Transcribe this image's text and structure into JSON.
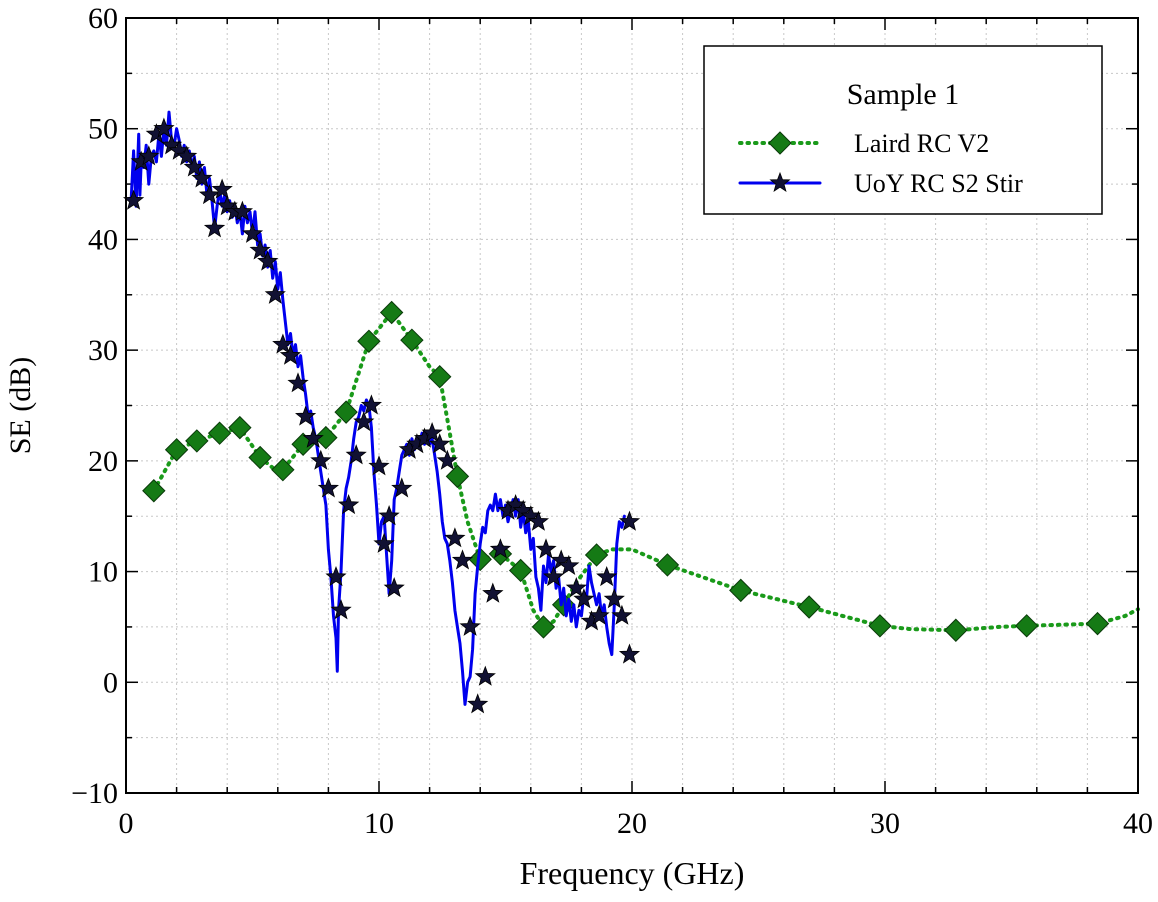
{
  "chart_data": {
    "type": "line",
    "title": "",
    "xlabel": "Frequency (GHz)",
    "ylabel": "SE (dB)",
    "xlim": [
      0,
      40
    ],
    "ylim": [
      -10,
      60
    ],
    "x_ticks": [
      0,
      10,
      20,
      30,
      40
    ],
    "y_ticks": [
      -10,
      0,
      10,
      20,
      30,
      40,
      50,
      60
    ],
    "x_tick_labels": [
      "0",
      "10",
      "20",
      "30",
      "40"
    ],
    "y_tick_labels": [
      "−10",
      "0",
      "10",
      "20",
      "30",
      "40",
      "50",
      "60"
    ],
    "grid": true,
    "legend": {
      "title": "Sample 1",
      "position": "top-right"
    },
    "series": [
      {
        "name": "Laird RC V2",
        "color": "#1a9a1a",
        "marker_color": "#157a15",
        "line_style": "dotted",
        "marker": "diamond",
        "line_x": [
          1.1,
          2.0,
          2.8,
          3.7,
          4.5,
          5.3,
          6.0,
          6.2,
          7.0,
          7.9,
          8.7,
          9.6,
          10.5,
          11.3,
          12.0,
          12.4,
          12.8,
          13.1,
          13.5,
          14.0,
          14.8,
          15.6,
          16.1,
          16.5,
          16.9,
          17.3,
          17.8,
          18.6,
          19.2,
          20.0,
          21.4,
          24.3,
          27.0,
          29.8,
          31.0,
          32.8,
          34.5,
          35.6,
          37.0,
          38.4,
          39.5,
          40.0
        ],
        "line_y": [
          17.3,
          21.0,
          21.8,
          22.5,
          23.0,
          20.3,
          19.0,
          19.2,
          21.5,
          22.1,
          24.4,
          30.8,
          33.4,
          30.9,
          28.5,
          27.6,
          22.5,
          18.6,
          14.5,
          11.1,
          11.6,
          10.1,
          6.5,
          5.0,
          5.5,
          7.0,
          9.0,
          11.5,
          12.0,
          12.0,
          10.6,
          8.3,
          6.8,
          5.1,
          4.8,
          4.7,
          5.0,
          5.1,
          5.2,
          5.3,
          6.0,
          6.6
        ],
        "marker_x": [
          1.1,
          2.0,
          2.8,
          3.7,
          4.5,
          5.3,
          6.2,
          7.0,
          7.9,
          8.7,
          9.6,
          10.5,
          11.3,
          12.4,
          13.1,
          14.0,
          14.8,
          15.6,
          16.5,
          17.3,
          18.6,
          21.4,
          24.3,
          27.0,
          29.8,
          32.8,
          35.6,
          38.4
        ],
        "marker_y": [
          17.3,
          21.0,
          21.8,
          22.5,
          23.0,
          20.3,
          19.2,
          21.5,
          22.1,
          24.4,
          30.8,
          33.4,
          30.9,
          27.6,
          18.6,
          11.1,
          11.6,
          10.1,
          5.0,
          7.0,
          11.5,
          10.6,
          8.3,
          6.8,
          5.1,
          4.7,
          5.1,
          5.3
        ]
      },
      {
        "name": "UoY RC S2 Stir",
        "color": "#0000ee",
        "marker_color": "#111133",
        "line_style": "solid",
        "marker": "star",
        "line_x": [
          0.2,
          0.3,
          0.4,
          0.5,
          0.55,
          0.6,
          0.7,
          0.8,
          0.9,
          1.0,
          1.1,
          1.2,
          1.3,
          1.4,
          1.5,
          1.6,
          1.7,
          1.8,
          1.9,
          2.0,
          2.1,
          2.2,
          2.3,
          2.4,
          2.5,
          2.6,
          2.7,
          2.8,
          2.9,
          3.0,
          3.1,
          3.2,
          3.3,
          3.4,
          3.5,
          3.6,
          3.7,
          3.8,
          3.9,
          4.0,
          4.1,
          4.2,
          4.3,
          4.4,
          4.5,
          4.6,
          4.7,
          4.8,
          4.9,
          5.0,
          5.1,
          5.2,
          5.3,
          5.4,
          5.5,
          5.6,
          5.7,
          5.8,
          5.9,
          6.0,
          6.1,
          6.2,
          6.3,
          6.4,
          6.5,
          6.6,
          6.7,
          6.8,
          6.9,
          7.0,
          7.1,
          7.2,
          7.3,
          7.4,
          7.5,
          7.6,
          7.7,
          7.8,
          7.9,
          8.0,
          8.1,
          8.2,
          8.3,
          8.35,
          8.4,
          8.5,
          8.6,
          8.7,
          8.8,
          8.9,
          9.0,
          9.1,
          9.2,
          9.3,
          9.4,
          9.5,
          9.6,
          9.7,
          9.8,
          9.9,
          10.0,
          10.1,
          10.2,
          10.3,
          10.4,
          10.5,
          10.6,
          10.7,
          10.8,
          10.9,
          11.0,
          11.1,
          11.2,
          11.3,
          11.4,
          11.5,
          11.6,
          11.7,
          11.8,
          11.9,
          12.0,
          12.1,
          12.2,
          12.3,
          12.4,
          12.5,
          12.6,
          12.7,
          12.8,
          12.9,
          13.0,
          13.1,
          13.2,
          13.3,
          13.4,
          13.5,
          13.6,
          13.7,
          13.8,
          13.9,
          14.0,
          14.1,
          14.2,
          14.3,
          14.4,
          14.5,
          14.6,
          14.7,
          14.8,
          14.9,
          15.0,
          15.1,
          15.2,
          15.3,
          15.4,
          15.5,
          15.6,
          15.7,
          15.8,
          15.9,
          16.0,
          16.1,
          16.2,
          16.3,
          16.4,
          16.5,
          16.6,
          16.7,
          16.8,
          16.9,
          17.0,
          17.1,
          17.2,
          17.3,
          17.4,
          17.5,
          17.6,
          17.7,
          17.8,
          17.9,
          18.0,
          18.1,
          18.2,
          18.3,
          18.4,
          18.5,
          18.6,
          18.7,
          18.8,
          18.9,
          19.0,
          19.1,
          19.2,
          19.3,
          19.4,
          19.5,
          19.6,
          19.7,
          19.8,
          19.9,
          20.0
        ],
        "line_y": [
          43.5,
          48.0,
          43.0,
          49.5,
          44.0,
          47.0,
          46.5,
          48.5,
          45.0,
          47.5,
          48.0,
          47.0,
          49.5,
          47.5,
          50.0,
          48.5,
          51.5,
          49.0,
          48.5,
          50.0,
          49.0,
          47.5,
          48.5,
          47.0,
          48.0,
          46.5,
          47.5,
          45.5,
          47.0,
          45.0,
          46.5,
          44.0,
          45.5,
          43.5,
          41.0,
          43.0,
          44.5,
          43.0,
          44.0,
          42.5,
          43.5,
          42.0,
          43.0,
          41.5,
          42.5,
          40.5,
          43.0,
          41.5,
          42.5,
          40.5,
          42.5,
          39.5,
          40.5,
          38.5,
          39.5,
          37.5,
          39.0,
          36.5,
          38.0,
          35.5,
          37.0,
          34.5,
          32.5,
          30.5,
          31.5,
          29.5,
          30.5,
          28.5,
          29.5,
          27.5,
          26.0,
          24.0,
          24.5,
          23.0,
          22.0,
          20.5,
          19.0,
          17.5,
          16.0,
          12.0,
          9.5,
          6.0,
          4.0,
          1.0,
          6.5,
          10.0,
          15.5,
          17.5,
          18.5,
          20.0,
          22.0,
          23.5,
          24.0,
          25.0,
          24.5,
          25.5,
          25.0,
          23.0,
          19.0,
          16.0,
          12.5,
          14.5,
          15.0,
          11.5,
          8.0,
          11.0,
          16.5,
          17.5,
          19.0,
          20.5,
          21.0,
          21.5,
          20.5,
          22.0,
          21.0,
          22.0,
          21.5,
          22.5,
          21.5,
          22.5,
          21.5,
          22.0,
          20.5,
          19.0,
          17.0,
          14.5,
          13.0,
          12.5,
          11.0,
          9.0,
          6.5,
          5.0,
          3.5,
          1.0,
          -2.0,
          0.0,
          0.5,
          3.0,
          8.0,
          10.5,
          12.5,
          14.0,
          13.5,
          15.5,
          16.0,
          15.5,
          17.0,
          15.5,
          16.5,
          15.0,
          16.0,
          14.5,
          15.5,
          16.5,
          15.0,
          16.5,
          14.0,
          15.5,
          13.5,
          14.5,
          12.0,
          13.0,
          9.5,
          8.5,
          6.5,
          10.5,
          9.0,
          11.5,
          10.0,
          11.0,
          8.5,
          9.5,
          7.0,
          8.5,
          6.0,
          7.5,
          5.5,
          7.0,
          5.0,
          6.5,
          6.0,
          8.0,
          7.5,
          10.5,
          9.0,
          8.0,
          7.0,
          8.0,
          6.0,
          7.0,
          5.0,
          3.5,
          2.5,
          7.0,
          12.5,
          14.5,
          14.0,
          15.0
        ],
        "marker_x": [
          0.3,
          0.6,
          0.9,
          1.2,
          1.5,
          1.8,
          2.1,
          2.4,
          2.7,
          3.0,
          3.3,
          3.5,
          3.8,
          4.0,
          4.3,
          4.6,
          5.0,
          5.3,
          5.6,
          5.9,
          6.2,
          6.5,
          6.8,
          7.1,
          7.4,
          7.7,
          8.0,
          8.3,
          8.5,
          8.8,
          9.1,
          9.4,
          9.7,
          10.0,
          10.2,
          10.4,
          10.6,
          10.9,
          11.2,
          11.5,
          11.8,
          12.1,
          12.4,
          12.7,
          13.0,
          13.3,
          13.6,
          13.9,
          14.2,
          14.5,
          14.8,
          15.1,
          15.4,
          15.7,
          16.0,
          16.3,
          16.6,
          16.9,
          17.2,
          17.5,
          17.8,
          18.1,
          18.4,
          18.7,
          19.0,
          19.3,
          19.6,
          19.9
        ],
        "marker_y": [
          43.5,
          47.0,
          47.5,
          49.5,
          50.0,
          48.5,
          48.0,
          47.5,
          46.5,
          45.5,
          44.0,
          41.0,
          44.5,
          43.0,
          42.5,
          42.5,
          40.5,
          39.0,
          38.0,
          35.0,
          30.5,
          29.5,
          27.0,
          24.0,
          22.0,
          20.0,
          17.5,
          9.5,
          6.5,
          16.0,
          20.5,
          23.5,
          25.0,
          19.5,
          12.5,
          15.0,
          8.5,
          17.5,
          21.0,
          21.5,
          22.0,
          22.5,
          21.5,
          20.0,
          13.0,
          11.0,
          5.0,
          -2.0,
          0.5,
          8.0,
          12.0,
          15.5,
          16.0,
          15.5,
          15.0,
          14.5,
          12.0,
          9.5,
          11.0,
          10.5,
          8.5,
          7.5,
          5.5,
          6.0,
          9.5,
          7.5,
          6.0,
          2.5
        ],
        "marker_x2": [
          19.9
        ],
        "marker_y2": [
          14.5
        ]
      }
    ]
  }
}
